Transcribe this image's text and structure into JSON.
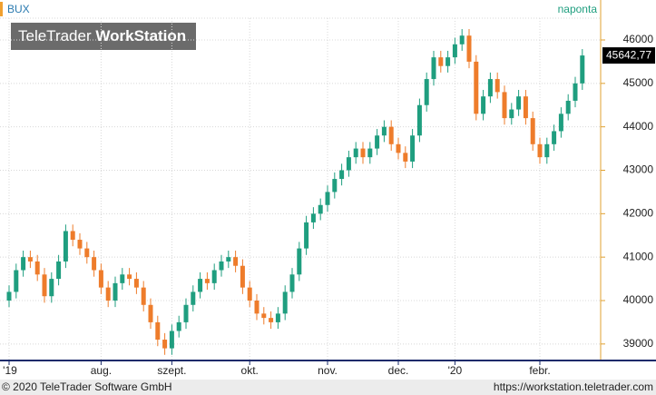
{
  "chart_data": {
    "type": "candlestick",
    "title": "BUX",
    "subtitle": "naponta",
    "logo": [
      "TeleTrader",
      "WorkStation"
    ],
    "footer_left": "© 2020 TeleTrader Software GmbH",
    "footer_right": "https://workstation.teletrader.com",
    "categories": [
      "'19",
      null,
      null,
      null,
      null,
      null,
      null,
      null,
      null,
      null,
      null,
      null,
      null,
      "aug.",
      null,
      null,
      null,
      null,
      null,
      null,
      null,
      null,
      null,
      "szept.",
      null,
      null,
      null,
      null,
      null,
      null,
      null,
      null,
      null,
      null,
      "okt.",
      null,
      null,
      null,
      null,
      null,
      null,
      null,
      null,
      null,
      null,
      "nov.",
      null,
      null,
      null,
      null,
      null,
      null,
      null,
      null,
      null,
      "dec.",
      null,
      null,
      null,
      null,
      null,
      null,
      null,
      "'20",
      null,
      null,
      null,
      null,
      null,
      null,
      null,
      null,
      null,
      null,
      null,
      "febr.",
      null,
      null,
      null,
      null,
      null,
      null
    ],
    "open": [
      40000,
      40200,
      40700,
      41000,
      40900,
      40600,
      40100,
      40500,
      40900,
      41600,
      41400,
      41200,
      41000,
      40700,
      40300,
      40000,
      40400,
      40600,
      40500,
      40300,
      39900,
      39500,
      39100,
      38900,
      39300,
      39500,
      39900,
      40200,
      40500,
      40400,
      40700,
      40900,
      41000,
      40800,
      40300,
      40000,
      39700,
      39600,
      39500,
      39700,
      40200,
      40600,
      41200,
      41800,
      42000,
      42200,
      42500,
      42800,
      43000,
      43300,
      43500,
      43300,
      43500,
      43800,
      44000,
      43600,
      43400,
      43200,
      43800,
      44500,
      45100,
      45600,
      45400,
      45600,
      45900,
      46100,
      45500,
      44300,
      44700,
      45100,
      44800,
      44200,
      44400,
      44700,
      44200,
      43600,
      43300,
      43600,
      43900,
      44300,
      44600,
      45000
    ],
    "high": [
      40350,
      40850,
      41150,
      41150,
      41050,
      40750,
      40650,
      41050,
      41750,
      41750,
      41550,
      41350,
      41150,
      40850,
      40450,
      40550,
      40750,
      40750,
      40650,
      40450,
      40050,
      39650,
      39250,
      39450,
      39650,
      40050,
      40350,
      40650,
      40650,
      40850,
      41050,
      41150,
      41150,
      40950,
      40450,
      40150,
      39850,
      39750,
      39850,
      40350,
      40750,
      41350,
      41950,
      42150,
      42350,
      42650,
      42950,
      43150,
      43450,
      43650,
      43650,
      43650,
      43950,
      44150,
      44150,
      43750,
      43550,
      43950,
      44650,
      45250,
      45750,
      45750,
      45750,
      46050,
      46250,
      46250,
      45650,
      44850,
      45250,
      45250,
      44950,
      44550,
      44850,
      44850,
      44350,
      43750,
      43750,
      44050,
      44450,
      44750,
      45150,
      45790
    ],
    "low": [
      39850,
      40050,
      40550,
      40750,
      40450,
      39950,
      39950,
      40350,
      40750,
      41250,
      41050,
      40850,
      40550,
      40150,
      39850,
      39850,
      40250,
      40350,
      40150,
      39750,
      39350,
      38950,
      38750,
      38750,
      39150,
      39350,
      39750,
      40050,
      40250,
      40250,
      40550,
      40750,
      40650,
      40150,
      39850,
      39550,
      39450,
      39350,
      39350,
      39550,
      40050,
      40450,
      41050,
      41650,
      41850,
      42050,
      42350,
      42650,
      42850,
      43150,
      43150,
      43150,
      43350,
      43650,
      43450,
      43250,
      43050,
      43050,
      43650,
      44350,
      44950,
      45250,
      45250,
      45450,
      45750,
      45350,
      44150,
      44150,
      44550,
      44650,
      44050,
      44050,
      44250,
      44050,
      43450,
      43150,
      43150,
      43450,
      43750,
      44150,
      44450,
      44850
    ],
    "close": [
      40200,
      40700,
      41000,
      40900,
      40600,
      40100,
      40500,
      40900,
      41600,
      41400,
      41200,
      41000,
      40700,
      40300,
      40000,
      40400,
      40600,
      40500,
      40300,
      39900,
      39500,
      39100,
      38900,
      39300,
      39500,
      39900,
      40200,
      40500,
      40400,
      40700,
      40900,
      41000,
      40800,
      40300,
      40000,
      39700,
      39600,
      39500,
      39700,
      40200,
      40600,
      41200,
      41800,
      42000,
      42200,
      42500,
      42800,
      43000,
      43300,
      43500,
      43300,
      43500,
      43800,
      44000,
      43600,
      43400,
      43200,
      43800,
      44500,
      45100,
      45600,
      45400,
      45600,
      45900,
      46100,
      45500,
      44300,
      44700,
      45100,
      44800,
      44200,
      44400,
      44700,
      44200,
      43600,
      43300,
      43600,
      43900,
      44300,
      44600,
      45000,
      45642.77
    ],
    "last_price": {
      "value": 45642.77,
      "label": "45642,77"
    },
    "up_color": "#1f9e7f",
    "down_color": "#ee7c2b",
    "ylim": [
      38620,
      46920
    ],
    "yticks": [
      39000,
      40000,
      41000,
      42000,
      43000,
      44000,
      45000,
      46000
    ],
    "grid": true
  }
}
